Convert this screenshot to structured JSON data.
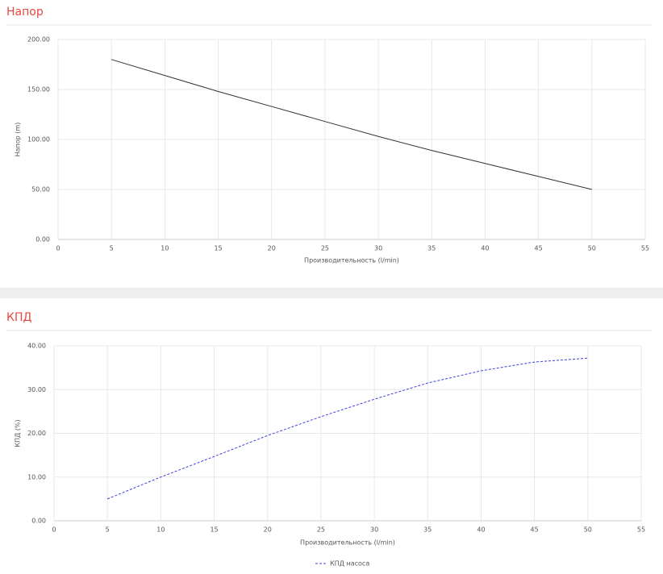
{
  "chart_data": [
    {
      "type": "line",
      "title": "Напор",
      "xlabel": "Производительность (l/min)",
      "ylabel": "Напор (m)",
      "x": [
        5,
        10,
        15,
        20,
        25,
        30,
        35,
        40,
        45,
        50
      ],
      "series": [
        {
          "color": "#333333",
          "dashed": false,
          "values": [
            180,
            164,
            148,
            133,
            118,
            103,
            89,
            76,
            63,
            50
          ]
        }
      ],
      "xlim": [
        0,
        55
      ],
      "xticks": [
        0,
        5,
        10,
        15,
        20,
        25,
        30,
        35,
        40,
        45,
        50,
        55
      ],
      "ylim": [
        0,
        200
      ],
      "yticks": [
        {
          "value": 0,
          "label": "0.00"
        },
        {
          "value": 50,
          "label": "50.00"
        },
        {
          "value": 100,
          "label": "100.00"
        },
        {
          "value": 150,
          "label": "150.00"
        },
        {
          "value": 200,
          "label": "200.00"
        }
      ],
      "grid": true
    },
    {
      "type": "line",
      "title": "КПД",
      "xlabel": "Производительность (l/min)",
      "ylabel": "КПД (%)",
      "x": [
        5,
        10,
        15,
        20,
        25,
        30,
        35,
        40,
        45,
        50
      ],
      "series": [
        {
          "name": "КПД насоса",
          "color": "#4040e0",
          "dashed": true,
          "values": [
            5,
            10,
            14.7,
            19.5,
            23.8,
            27.8,
            31.5,
            34.3,
            36.3,
            37.2
          ]
        }
      ],
      "xlim": [
        0,
        55
      ],
      "xticks": [
        0,
        5,
        10,
        15,
        20,
        25,
        30,
        35,
        40,
        45,
        50,
        55
      ],
      "ylim": [
        0,
        40
      ],
      "yticks": [
        {
          "value": 0,
          "label": "0.00"
        },
        {
          "value": 10,
          "label": "10.00"
        },
        {
          "value": 20,
          "label": "20.00"
        },
        {
          "value": 30,
          "label": "30.00"
        },
        {
          "value": 40,
          "label": "40.00"
        }
      ],
      "grid": true,
      "legend": "bottom"
    }
  ]
}
